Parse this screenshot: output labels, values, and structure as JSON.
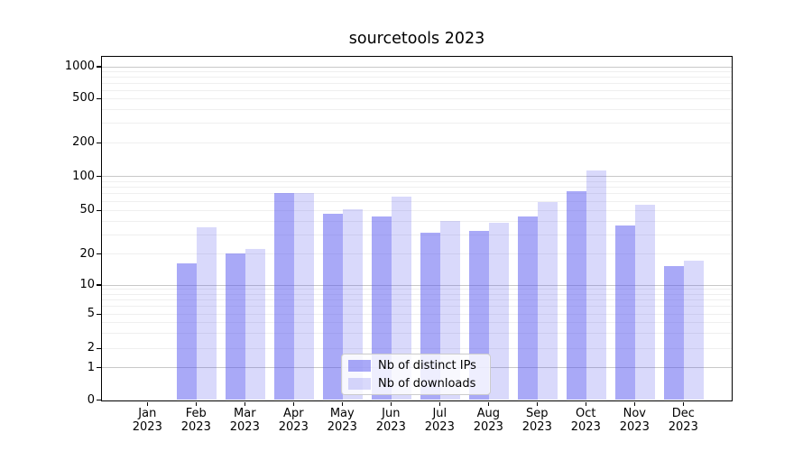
{
  "title": "sourcetools 2023",
  "chart_data": {
    "type": "bar",
    "title": "sourcetools 2023",
    "categories": [
      "Jan 2023",
      "Feb 2023",
      "Mar 2023",
      "Apr 2023",
      "May 2023",
      "Jun 2023",
      "Jul 2023",
      "Aug 2023",
      "Sep 2023",
      "Oct 2023",
      "Nov 2023",
      "Dec 2023"
    ],
    "series": [
      {
        "name": "Nb of distinct IPs",
        "values": [
          0,
          16,
          20,
          70,
          46,
          44,
          31,
          32,
          44,
          73,
          36,
          15
        ]
      },
      {
        "name": "Nb of downloads",
        "values": [
          0,
          35,
          22,
          70,
          51,
          66,
          40,
          38,
          59,
          112,
          56,
          17
        ]
      }
    ],
    "yscale": "symlog",
    "yticks": [
      0,
      1,
      2,
      5,
      10,
      20,
      50,
      100,
      200,
      500,
      1000
    ],
    "ylim": [
      0,
      1200
    ],
    "xlabel": "",
    "ylabel": "",
    "grid": true,
    "legend_position": "lower center"
  },
  "legend": {
    "items": [
      {
        "label": "Nb of distinct IPs",
        "key": "bar_distinct_ips"
      },
      {
        "label": "Nb of downloads",
        "key": "bar_downloads"
      }
    ]
  },
  "colors": {
    "bar_distinct_ips": "rgba(80,80,238,0.49)",
    "bar_downloads": "rgba(80,80,238,0.22)",
    "grid_major": "#c8c8c8",
    "grid_minor": "#efefef",
    "axis": "#000000",
    "text": "#000000",
    "legend_border": "#cccccc",
    "legend_bg": "rgba(255,255,255,0.8)"
  }
}
